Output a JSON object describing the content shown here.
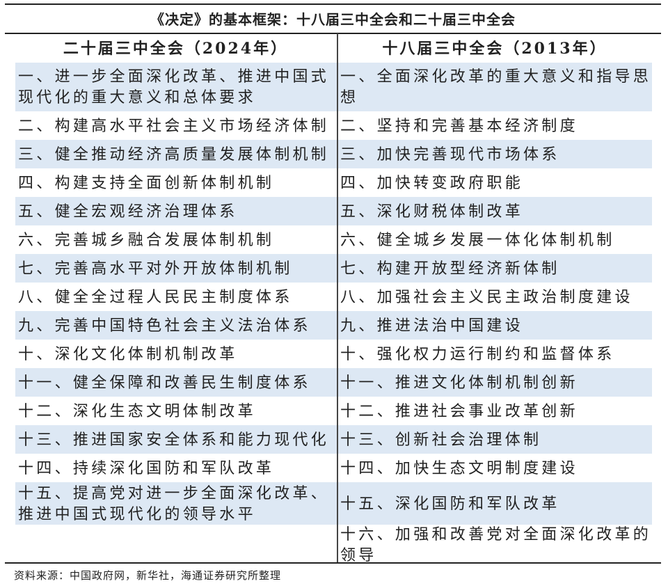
{
  "title": "《决定》的基本框架：十八届三中全会和二十届三中全会",
  "columns": [
    "二十届三中全会（2024年）",
    "十八届三中全会（2013年）"
  ],
  "colors": {
    "band": "#dde8f4",
    "text": "#222222"
  },
  "rows": [
    [
      "一、进一步全面深化改革、推进中国式现代化的重大意义和总体要求",
      "一、全面深化改革的重大意义和指导思想"
    ],
    [
      "二、构建高水平社会主义市场经济体制",
      "二、坚持和完善基本经济制度"
    ],
    [
      "三、健全推动经济高质量发展体制机制",
      "三、加快完善现代市场体系"
    ],
    [
      "四、构建支持全面创新体制机制",
      "四、加快转变政府职能"
    ],
    [
      "五、健全宏观经济治理体系",
      "五、深化财税体制改革"
    ],
    [
      "六、完善城乡融合发展体制机制",
      "六、健全城乡发展一体化体制机制"
    ],
    [
      "七、完善高水平对外开放体制机制",
      "七、构建开放型经济新体制"
    ],
    [
      "八、健全全过程人民民主制度体系",
      "八、加强社会主义民主政治制度建设"
    ],
    [
      "九、完善中国特色社会主义法治体系",
      "九、推进法治中国建设"
    ],
    [
      "十、深化文化体制机制改革",
      "十、强化权力运行制约和监督体系"
    ],
    [
      "十一、健全保障和改善民生制度体系",
      "十一、推进文化体制机制创新"
    ],
    [
      "十二、深化生态文明体制改革",
      "十二、推进社会事业改革创新"
    ],
    [
      "十三、推进国家安全体系和能力现代化",
      "十三、创新社会治理体制"
    ],
    [
      "十四、持续深化国防和军队改革",
      "十四、加快生态文明制度建设"
    ],
    [
      "十五、提高党对进一步全面深化改革、推进中国式现代化的领导水平",
      "十五、深化国防和军队改革"
    ],
    [
      "",
      "十六、加强和改善党对全面深化改革的领导"
    ]
  ],
  "source": "资料来源：中国政府网，新华社，海通证券研究所整理"
}
